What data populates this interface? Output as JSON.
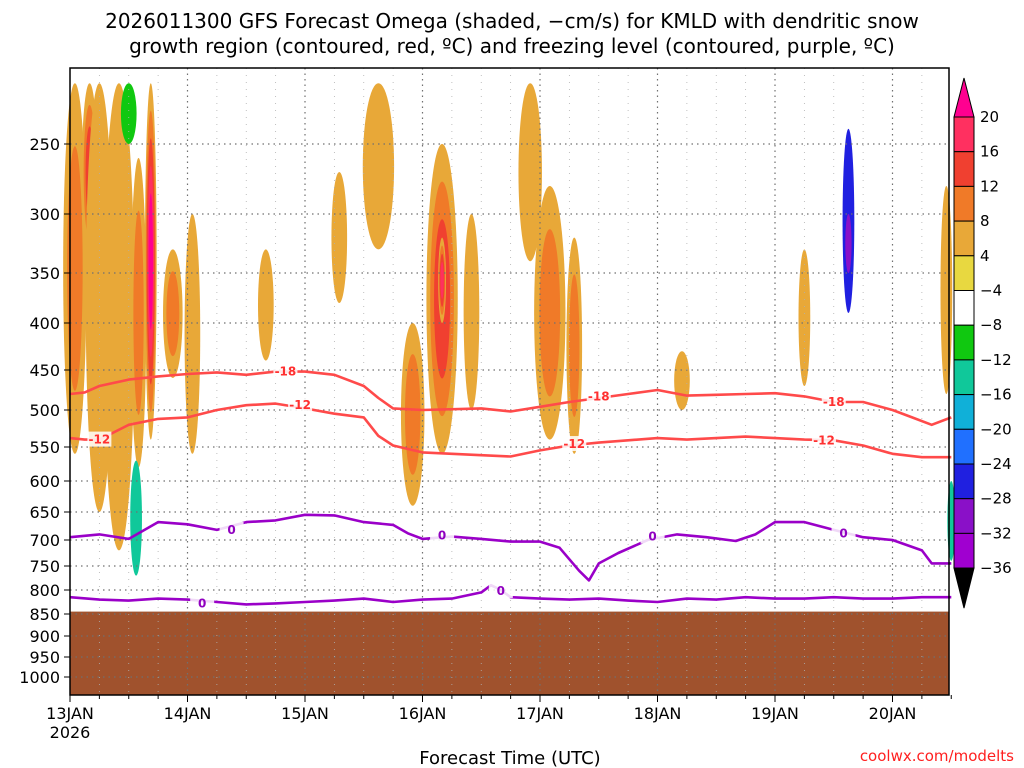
{
  "chart_data": {
    "type": "heatmap",
    "title_line1": "2026011300 GFS Forecast Omega (shaded, −cm/s) for KMLD with dendritic snow",
    "title_line2": "growth region (contoured, red, ºC) and freezing level (contoured, purple, ºC)",
    "xlabel": "Forecast Time (UTC)",
    "credit": "coolwx.com/modelts",
    "x_range_hours": [
      0,
      180
    ],
    "x_ticks": [
      {
        "label": "13JAN",
        "hour": 0
      },
      {
        "label": "14JAN",
        "hour": 24
      },
      {
        "label": "15JAN",
        "hour": 48
      },
      {
        "label": "16JAN",
        "hour": 72
      },
      {
        "label": "17JAN",
        "hour": 96
      },
      {
        "label": "18JAN",
        "hour": 120
      },
      {
        "label": "19JAN",
        "hour": 144
      },
      {
        "label": "20JAN",
        "hour": 168
      }
    ],
    "x_year_label": "2026",
    "y_levels_hpa": [
      "250",
      "300",
      "350",
      "400",
      "450",
      "500",
      "550",
      "600",
      "650",
      "700",
      "750",
      "800",
      "850",
      "900",
      "950",
      "1000"
    ],
    "colorbar": {
      "labels": [
        "20",
        "16",
        "12",
        "8",
        "4",
        "−4",
        "−8",
        "−12",
        "−16",
        "−20",
        "−24",
        "−28",
        "−32",
        "−36"
      ],
      "colors": [
        "#ff3060",
        "#f04030",
        "#f07a28",
        "#e8a838",
        "#e8d840",
        "#ffffff",
        "#10c810",
        "#10c89a",
        "#10b0d8",
        "#2070ff",
        "#2020e0",
        "#8a10c8",
        "#a000d0",
        "#a0a0a0"
      ],
      "top_color": "#ff0090",
      "bottom_color": "#000000"
    },
    "ground_color": "#a0522d",
    "ground_top_hpa": 845,
    "dgz_contours": [
      {
        "label": "-18",
        "color": "#ff4a4a",
        "points": [
          [
            0,
            480
          ],
          [
            3,
            478
          ],
          [
            6,
            470
          ],
          [
            12,
            462
          ],
          [
            18,
            458
          ],
          [
            24,
            455
          ],
          [
            30,
            453
          ],
          [
            36,
            456
          ],
          [
            42,
            452
          ],
          [
            48,
            452
          ],
          [
            54,
            456
          ],
          [
            60,
            470
          ],
          [
            63,
            485
          ],
          [
            66,
            498
          ],
          [
            72,
            500
          ],
          [
            84,
            498
          ],
          [
            90,
            502
          ],
          [
            96,
            496
          ],
          [
            102,
            490
          ],
          [
            108,
            485
          ],
          [
            114,
            480
          ],
          [
            120,
            475
          ],
          [
            126,
            482
          ],
          [
            132,
            481
          ],
          [
            138,
            480
          ],
          [
            144,
            479
          ],
          [
            150,
            483
          ],
          [
            156,
            490
          ],
          [
            162,
            490
          ],
          [
            168,
            500
          ],
          [
            172,
            510
          ],
          [
            176,
            520
          ],
          [
            180,
            510
          ]
        ],
        "label_at": [
          [
            44,
            452
          ],
          [
            108,
            483
          ],
          [
            156,
            490
          ]
        ]
      },
      {
        "label": "-12",
        "color": "#ff4a4a",
        "points": [
          [
            0,
            538
          ],
          [
            3,
            540
          ],
          [
            6,
            540
          ],
          [
            12,
            520
          ],
          [
            18,
            512
          ],
          [
            24,
            510
          ],
          [
            30,
            500
          ],
          [
            36,
            494
          ],
          [
            42,
            492
          ],
          [
            48,
            498
          ],
          [
            54,
            505
          ],
          [
            60,
            510
          ],
          [
            63,
            535
          ],
          [
            66,
            548
          ],
          [
            72,
            558
          ],
          [
            84,
            562
          ],
          [
            90,
            564
          ],
          [
            96,
            555
          ],
          [
            102,
            548
          ],
          [
            108,
            544
          ],
          [
            114,
            541
          ],
          [
            120,
            538
          ],
          [
            126,
            540
          ],
          [
            132,
            538
          ],
          [
            138,
            536
          ],
          [
            144,
            538
          ],
          [
            150,
            540
          ],
          [
            156,
            541
          ],
          [
            162,
            548
          ],
          [
            168,
            560
          ],
          [
            174,
            565
          ],
          [
            180,
            565
          ]
        ],
        "label_at": [
          [
            6,
            540
          ],
          [
            47,
            494
          ],
          [
            103,
            546
          ],
          [
            154,
            541
          ]
        ]
      }
    ],
    "freezing_contours": [
      {
        "label": "0",
        "color": "#9a00c8",
        "points": [
          [
            0,
            695
          ],
          [
            6,
            690
          ],
          [
            12,
            698
          ],
          [
            18,
            668
          ],
          [
            24,
            672
          ],
          [
            30,
            682
          ],
          [
            36,
            668
          ],
          [
            42,
            665
          ],
          [
            48,
            655
          ],
          [
            54,
            656
          ],
          [
            60,
            668
          ],
          [
            66,
            673
          ],
          [
            69,
            688
          ],
          [
            72,
            698
          ],
          [
            78,
            694
          ],
          [
            84,
            698
          ],
          [
            90,
            703
          ],
          [
            96,
            703
          ],
          [
            100,
            715
          ],
          [
            104,
            760
          ],
          [
            106,
            780
          ],
          [
            108,
            745
          ],
          [
            112,
            725
          ],
          [
            118,
            700
          ],
          [
            124,
            690
          ],
          [
            130,
            695
          ],
          [
            136,
            702
          ],
          [
            140,
            690
          ],
          [
            144,
            668
          ],
          [
            150,
            668
          ],
          [
            156,
            682
          ],
          [
            162,
            695
          ],
          [
            168,
            700
          ],
          [
            174,
            720
          ],
          [
            176,
            745
          ],
          [
            180,
            745
          ]
        ],
        "label_at": [
          [
            33,
            682
          ],
          [
            76,
            692
          ],
          [
            119,
            694
          ],
          [
            158,
            688
          ]
        ]
      },
      {
        "label": "0",
        "color": "#9a00c8",
        "points": [
          [
            0,
            815
          ],
          [
            6,
            820
          ],
          [
            12,
            822
          ],
          [
            18,
            818
          ],
          [
            24,
            820
          ],
          [
            30,
            825
          ],
          [
            36,
            830
          ],
          [
            42,
            828
          ],
          [
            48,
            825
          ],
          [
            54,
            822
          ],
          [
            60,
            818
          ],
          [
            66,
            825
          ],
          [
            72,
            820
          ],
          [
            78,
            818
          ],
          [
            84,
            805
          ],
          [
            86,
            790
          ],
          [
            88,
            800
          ],
          [
            90,
            815
          ],
          [
            96,
            818
          ],
          [
            102,
            820
          ],
          [
            108,
            818
          ],
          [
            114,
            822
          ],
          [
            120,
            825
          ],
          [
            126,
            818
          ],
          [
            132,
            820
          ],
          [
            138,
            815
          ],
          [
            144,
            818
          ],
          [
            150,
            818
          ],
          [
            156,
            815
          ],
          [
            162,
            818
          ],
          [
            168,
            818
          ],
          [
            174,
            815
          ],
          [
            180,
            815
          ]
        ],
        "label_at": [
          [
            27,
            828
          ],
          [
            88,
            802
          ]
        ]
      }
    ],
    "omega_blobs": [
      {
        "hour": 1,
        "p_top": 210,
        "p_bot": 560,
        "w_h": 3,
        "value": 8
      },
      {
        "hour": 4,
        "p_top": 210,
        "p_bot": 340,
        "w_h": 2,
        "value": 12
      },
      {
        "hour": 6,
        "p_top": 210,
        "p_bot": 650,
        "w_h": 3.5,
        "value": 6
      },
      {
        "hour": 10,
        "p_top": 210,
        "p_bot": 720,
        "w_h": 4,
        "value": 6
      },
      {
        "hour": 14,
        "p_top": 260,
        "p_bot": 580,
        "w_h": 2,
        "value": 8
      },
      {
        "hour": 16.5,
        "p_top": 210,
        "p_bot": 540,
        "w_h": 1.5,
        "value": 22
      },
      {
        "hour": 21,
        "p_top": 330,
        "p_bot": 460,
        "w_h": 2.5,
        "value": 10
      },
      {
        "hour": 25,
        "p_top": 300,
        "p_bot": 560,
        "w_h": 2,
        "value": 6
      },
      {
        "hour": 40,
        "p_top": 330,
        "p_bot": 440,
        "w_h": 2,
        "value": 6
      },
      {
        "hour": 55,
        "p_top": 270,
        "p_bot": 380,
        "w_h": 2,
        "value": 5
      },
      {
        "hour": 63,
        "p_top": 210,
        "p_bot": 330,
        "w_h": 4,
        "value": 6
      },
      {
        "hour": 70,
        "p_top": 400,
        "p_bot": 640,
        "w_h": 3,
        "value": 10
      },
      {
        "hour": 76,
        "p_top": 250,
        "p_bot": 560,
        "w_h": 4,
        "value": 12
      },
      {
        "hour": 76,
        "p_top": 320,
        "p_bot": 400,
        "w_h": 1,
        "value": 17
      },
      {
        "hour": 82,
        "p_top": 300,
        "p_bot": 500,
        "w_h": 2,
        "value": 6
      },
      {
        "hour": 94,
        "p_top": 210,
        "p_bot": 340,
        "w_h": 3,
        "value": 6
      },
      {
        "hour": 98,
        "p_top": 280,
        "p_bot": 540,
        "w_h": 4,
        "value": 10
      },
      {
        "hour": 103,
        "p_top": 320,
        "p_bot": 560,
        "w_h": 2,
        "value": 8
      },
      {
        "hour": 125,
        "p_top": 430,
        "p_bot": 500,
        "w_h": 2,
        "value": 5
      },
      {
        "hour": 150,
        "p_top": 330,
        "p_bot": 470,
        "w_h": 1.5,
        "value": 5
      },
      {
        "hour": 179,
        "p_top": 280,
        "p_bot": 480,
        "w_h": 1.5,
        "value": 6
      }
    ],
    "negative_omega_blobs": [
      {
        "hour": 12,
        "p_top": 210,
        "p_bot": 250,
        "w_h": 2,
        "value": -6
      },
      {
        "hour": 13.5,
        "p_top": 570,
        "p_bot": 770,
        "w_h": 1.5,
        "value": -10
      },
      {
        "hour": 159,
        "p_top": 240,
        "p_bot": 390,
        "w_h": 1.5,
        "value": -20
      },
      {
        "hour": 159,
        "p_top": 300,
        "p_bot": 350,
        "w_h": 0.8,
        "value": -26
      },
      {
        "hour": 180,
        "p_top": 600,
        "p_bot": 740,
        "w_h": 1,
        "value": -8
      }
    ]
  }
}
